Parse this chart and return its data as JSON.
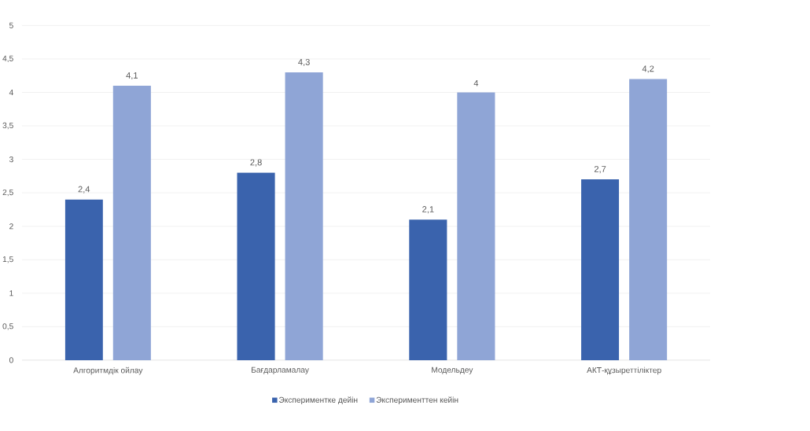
{
  "chart_data": {
    "type": "bar",
    "categories": [
      "Алгоритмдік ойлау",
      "Бағдарламалау",
      "Модельдеу",
      "АКТ-құзыреттіліктер"
    ],
    "series": [
      {
        "name": "Экспериментке дейін",
        "color": "#3a63ad",
        "values": [
          2.4,
          2.8,
          2.1,
          2.7
        ],
        "value_labels": [
          "2,4",
          "2,8",
          "2,1",
          "2,7"
        ]
      },
      {
        "name": "Эксперименттен кейін",
        "color": "#8fa5d6",
        "values": [
          4.1,
          4.3,
          4.0,
          4.2
        ],
        "value_labels": [
          "4,1",
          "4,3",
          "4",
          "4,2"
        ]
      }
    ],
    "ylim": [
      0,
      5
    ],
    "yticks": [
      0,
      {
        "value": 0.5,
        "label": "0,5"
      },
      1,
      {
        "value": 1.5,
        "label": "1,5"
      },
      2,
      {
        "value": 2.5,
        "label": "2,5"
      },
      3,
      {
        "value": 3.5,
        "label": "3,5"
      },
      4,
      {
        "value": 4.5,
        "label": "4,5"
      },
      5
    ],
    "grid": "y",
    "legend": "bottom"
  }
}
